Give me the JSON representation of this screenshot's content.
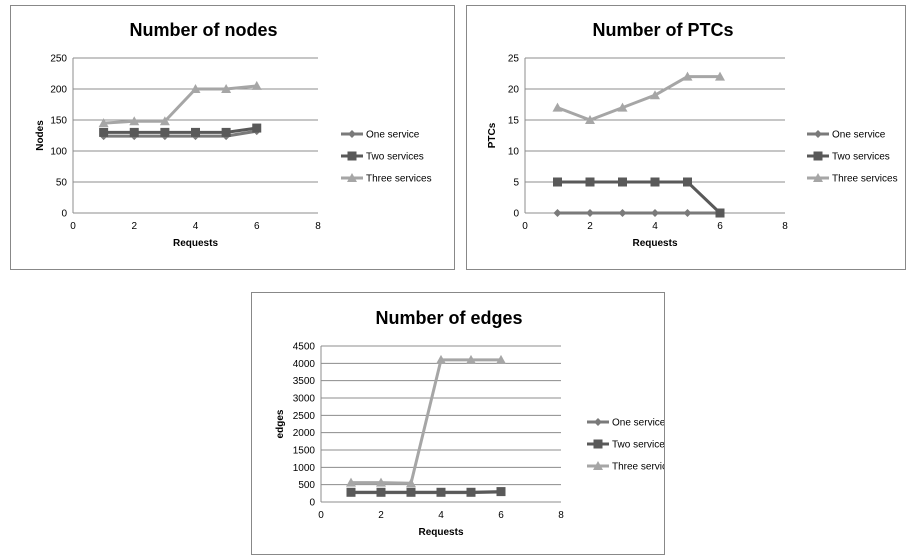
{
  "chart_data": [
    {
      "type": "line",
      "title": "Number of nodes",
      "xlabel": "Requests",
      "ylabel": "Nodes",
      "xlim": [
        0,
        8
      ],
      "ylim": [
        0,
        250
      ],
      "xticks": [
        0,
        2,
        4,
        6,
        8
      ],
      "yticks": [
        0,
        50,
        100,
        150,
        200,
        250
      ],
      "grid": "horizontal",
      "legend": "right",
      "x": [
        1,
        2,
        3,
        4,
        5,
        6
      ],
      "series": [
        {
          "name": "One service",
          "values": [
            124,
            124,
            124,
            124,
            124,
            132
          ],
          "color": "#7a7a7a",
          "marker": "diamond"
        },
        {
          "name": "Two services",
          "values": [
            130,
            130,
            130,
            130,
            130,
            137
          ],
          "color": "#595959",
          "marker": "square"
        },
        {
          "name": "Three services",
          "values": [
            145,
            148,
            148,
            200,
            200,
            205
          ],
          "color": "#a6a6a6",
          "marker": "triangle"
        }
      ]
    },
    {
      "type": "line",
      "title": "Number of PTCs",
      "xlabel": "Requests",
      "ylabel": "PTCs",
      "xlim": [
        0,
        8
      ],
      "ylim": [
        0,
        25
      ],
      "xticks": [
        0,
        2,
        4,
        6,
        8
      ],
      "yticks": [
        0,
        5,
        10,
        15,
        20,
        25
      ],
      "grid": "horizontal",
      "legend": "right",
      "x": [
        1,
        2,
        3,
        4,
        5,
        6
      ],
      "series": [
        {
          "name": "One service",
          "values": [
            0,
            0,
            0,
            0,
            0,
            0
          ],
          "color": "#7a7a7a",
          "marker": "diamond"
        },
        {
          "name": "Two services",
          "values": [
            5,
            5,
            5,
            5,
            5,
            0
          ],
          "color": "#595959",
          "marker": "square"
        },
        {
          "name": "Three services",
          "values": [
            17,
            15,
            17,
            19,
            22,
            22
          ],
          "color": "#a6a6a6",
          "marker": "triangle"
        }
      ]
    },
    {
      "type": "line",
      "title": "Number of edges",
      "xlabel": "Requests",
      "ylabel": "edges",
      "xlim": [
        0,
        8
      ],
      "ylim": [
        0,
        4500
      ],
      "xticks": [
        0,
        2,
        4,
        6,
        8
      ],
      "yticks": [
        0,
        500,
        1000,
        1500,
        2000,
        2500,
        3000,
        3500,
        4000,
        4500
      ],
      "grid": "horizontal",
      "legend": "right",
      "x": [
        1,
        2,
        3,
        4,
        5,
        6
      ],
      "series": [
        {
          "name": "One service",
          "values": [
            270,
            270,
            270,
            270,
            270,
            290
          ],
          "color": "#7a7a7a",
          "marker": "diamond"
        },
        {
          "name": "Two services",
          "values": [
            280,
            280,
            280,
            280,
            280,
            300
          ],
          "color": "#595959",
          "marker": "square"
        },
        {
          "name": "Three services",
          "values": [
            560,
            560,
            540,
            4100,
            4100,
            4100
          ],
          "color": "#a6a6a6",
          "marker": "triangle"
        }
      ]
    }
  ]
}
